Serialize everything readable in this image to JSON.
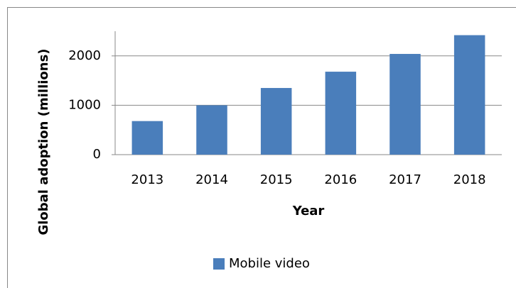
{
  "chart_data": {
    "type": "bar",
    "categories": [
      "2013",
      "2014",
      "2015",
      "2016",
      "2017",
      "2018"
    ],
    "series": [
      {
        "name": "Mobile video",
        "color": "#4a7ebb",
        "values": [
          680,
          1000,
          1350,
          1680,
          2040,
          2420
        ]
      }
    ],
    "ylim": [
      0,
      2500
    ],
    "yticks": [
      0,
      1000,
      2000
    ],
    "grid": true,
    "xlabel": "Year",
    "ylabel": "Global adoption (millions)",
    "legend": "bottom"
  }
}
